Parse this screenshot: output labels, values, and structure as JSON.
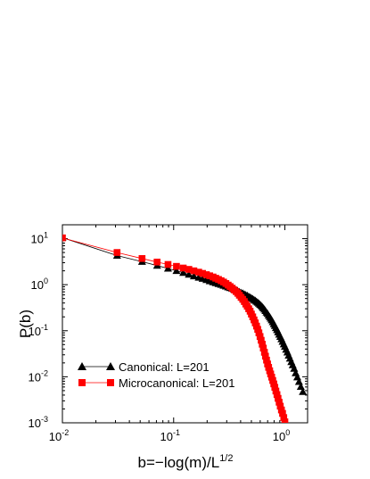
{
  "chart_data": {
    "type": "scatter",
    "title": "",
    "xlabel": "b=−log(m)/L",
    "xlabel_superscript": "1/2",
    "ylabel": "P(b)",
    "xscale": "log",
    "yscale": "log",
    "xlim": [
      0.01,
      1.6
    ],
    "ylim": [
      0.001,
      20
    ],
    "x_ticks": [
      {
        "base": "10",
        "exp": "-2",
        "value": 0.01
      },
      {
        "base": "10",
        "exp": "-1",
        "value": 0.1
      },
      {
        "base": "10",
        "exp": "0",
        "value": 1
      }
    ],
    "y_ticks": [
      {
        "base": "10",
        "exp": "-3",
        "value": 0.001
      },
      {
        "base": "10",
        "exp": "-2",
        "value": 0.01
      },
      {
        "base": "10",
        "exp": "-1",
        "value": 0.1
      },
      {
        "base": "10",
        "exp": "0",
        "value": 1
      },
      {
        "base": "10",
        "exp": "1",
        "value": 10
      }
    ],
    "grid": false,
    "legend_position": "lower-left",
    "series": [
      {
        "name": "Canonical: L=201",
        "color": "#000000",
        "marker": "triangle",
        "x": [
          0.01,
          0.031,
          0.052,
          0.071,
          0.089,
          0.106,
          0.122,
          0.137,
          0.152,
          0.168,
          0.182,
          0.197,
          0.211,
          0.226,
          0.239,
          0.253,
          0.267,
          0.281,
          0.295,
          0.309,
          0.322,
          0.336,
          0.35,
          0.364,
          0.377,
          0.39,
          0.404,
          0.418,
          0.432,
          0.445,
          0.459,
          0.473,
          0.487,
          0.5,
          0.514,
          0.528,
          0.542,
          0.556,
          0.57,
          0.584,
          0.598,
          0.612,
          0.626,
          0.64,
          0.655,
          0.669,
          0.684,
          0.699,
          0.714,
          0.73,
          0.745,
          0.761,
          0.778,
          0.795,
          0.812,
          0.83,
          0.849,
          0.868,
          0.888,
          0.909,
          0.931,
          0.953,
          0.977,
          1.0,
          1.026,
          1.053,
          1.081,
          1.11,
          1.142,
          1.175,
          1.211,
          1.25,
          1.293,
          1.339,
          1.39,
          1.45
        ],
        "y": [
          10.5,
          4.3,
          3.15,
          2.6,
          2.25,
          2.0,
          1.82,
          1.66,
          1.53,
          1.43,
          1.35,
          1.27,
          1.2,
          1.14,
          1.09,
          1.04,
          1.0,
          0.96,
          0.92,
          0.88,
          0.85,
          0.82,
          0.79,
          0.76,
          0.73,
          0.7,
          0.67,
          0.65,
          0.62,
          0.6,
          0.58,
          0.55,
          0.53,
          0.51,
          0.49,
          0.47,
          0.45,
          0.43,
          0.41,
          0.39,
          0.37,
          0.35,
          0.33,
          0.31,
          0.29,
          0.27,
          0.25,
          0.235,
          0.215,
          0.2,
          0.185,
          0.17,
          0.155,
          0.14,
          0.128,
          0.115,
          0.104,
          0.093,
          0.083,
          0.074,
          0.066,
          0.058,
          0.051,
          0.045,
          0.039,
          0.034,
          0.029,
          0.025,
          0.021,
          0.018,
          0.015,
          0.012,
          0.0098,
          0.0078,
          0.0061,
          0.0047
        ]
      },
      {
        "name": "Microcanonical: L=201",
        "color": "#ff0000",
        "marker": "square",
        "x": [
          0.01,
          0.031,
          0.052,
          0.071,
          0.089,
          0.106,
          0.122,
          0.137,
          0.152,
          0.168,
          0.182,
          0.197,
          0.211,
          0.226,
          0.239,
          0.253,
          0.267,
          0.281,
          0.295,
          0.309,
          0.322,
          0.336,
          0.35,
          0.364,
          0.377,
          0.39,
          0.404,
          0.418,
          0.432,
          0.445,
          0.459,
          0.473,
          0.487,
          0.5,
          0.514,
          0.528,
          0.542,
          0.556,
          0.57,
          0.584,
          0.598,
          0.612,
          0.626,
          0.64,
          0.655,
          0.669,
          0.684,
          0.699,
          0.714,
          0.73,
          0.745,
          0.761,
          0.778,
          0.795,
          0.812,
          0.83,
          0.849,
          0.868,
          0.888,
          0.909,
          0.931,
          0.953,
          0.977,
          1.0
        ],
        "y": [
          10.4,
          5.0,
          3.7,
          3.1,
          2.75,
          2.5,
          2.3,
          2.15,
          2.0,
          1.87,
          1.76,
          1.65,
          1.56,
          1.47,
          1.38,
          1.3,
          1.22,
          1.14,
          1.06,
          0.98,
          0.91,
          0.84,
          0.77,
          0.71,
          0.65,
          0.59,
          0.53,
          0.48,
          0.43,
          0.38,
          0.34,
          0.3,
          0.265,
          0.23,
          0.2,
          0.172,
          0.148,
          0.126,
          0.107,
          0.09,
          0.075,
          0.062,
          0.051,
          0.042,
          0.034,
          0.028,
          0.023,
          0.019,
          0.016,
          0.0135,
          0.0115,
          0.0098,
          0.0083,
          0.007,
          0.0059,
          0.0049,
          0.0041,
          0.0034,
          0.0028,
          0.0023,
          0.0019,
          0.0016,
          0.0013,
          0.00105
        ]
      }
    ]
  }
}
